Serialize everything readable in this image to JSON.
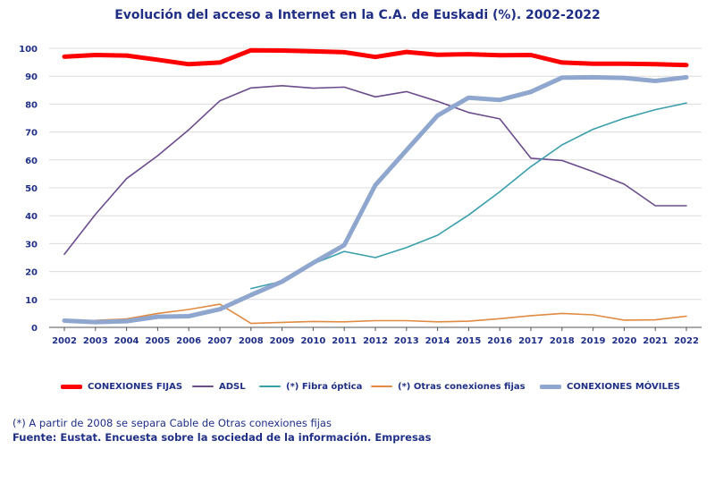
{
  "chart_data": {
    "type": "line",
    "title": "Evolución del acceso a Internet en la C.A. de Euskadi (%). 2002-2022",
    "xlabel": "",
    "ylabel": "",
    "ylim": [
      0,
      100
    ],
    "yticks": [
      "0",
      "10",
      "20",
      "30",
      "40",
      "50",
      "60",
      "70",
      "80",
      "90",
      "100"
    ],
    "grid": true,
    "legend_position": "bottom",
    "categories": [
      "2002",
      "2003",
      "2004",
      "2005",
      "2006",
      "2007",
      "2008",
      "2009",
      "2010",
      "2011",
      "2012",
      "2013",
      "2014",
      "2015",
      "2016",
      "2017",
      "2018",
      "2019",
      "2020",
      "2021",
      "2022"
    ],
    "series": [
      {
        "name": "CONEXIONES FIJAS",
        "color": "#ff0000",
        "weight": "thick",
        "values": [
          97.0,
          97.6,
          97.4,
          95.9,
          94.3,
          94.9,
          99.3,
          99.2,
          98.9,
          98.6,
          96.9,
          98.7,
          97.7,
          97.9,
          97.5,
          97.6,
          94.9,
          94.5,
          94.5,
          94.3,
          94.0
        ]
      },
      {
        "name": "ADSL",
        "color": "#6b4c8c",
        "weight": "thin",
        "values": [
          26.2,
          40.5,
          53.3,
          61.5,
          70.8,
          81.2,
          85.8,
          86.6,
          85.7,
          86.1,
          82.6,
          84.5,
          81.0,
          77.0,
          74.7,
          60.6,
          59.8,
          55.8,
          51.3,
          43.6,
          43.6
        ]
      },
      {
        "name": "(*) Fibra óptica",
        "color": "#3a9fad",
        "weight": "thin",
        "values": [
          null,
          null,
          null,
          null,
          null,
          null,
          13.9,
          16.5,
          22.8,
          27.2,
          25.0,
          28.6,
          33.0,
          40.3,
          48.6,
          57.6,
          65.4,
          71.0,
          74.9,
          78.0,
          80.4
        ]
      },
      {
        "name": "(*) Otras conexiones fijas",
        "color": "#e08a42",
        "weight": "thin",
        "values": [
          2.4,
          2.5,
          3.0,
          5.0,
          6.4,
          8.3,
          1.4,
          1.8,
          2.1,
          2.0,
          2.4,
          2.4,
          2.0,
          2.2,
          3.1,
          4.2,
          5.0,
          4.5,
          2.6,
          2.7,
          4.0
        ]
      },
      {
        "name": "CONEXIONES MÓVILES",
        "color": "#8fa6cf",
        "weight": "thick",
        "values": [
          2.4,
          1.9,
          2.2,
          3.8,
          4.0,
          6.5,
          11.6,
          16.4,
          23.1,
          29.5,
          51.0,
          63.5,
          75.9,
          82.3,
          81.5,
          84.4,
          89.5,
          89.6,
          89.4,
          88.3,
          89.6
        ]
      }
    ],
    "notes": [
      "(*) A partir de 2008 se separa Cable de Otras conexiones fijas",
      "Fuente: Eustat. Encuesta sobre la sociedad de la información. Empresas"
    ]
  }
}
